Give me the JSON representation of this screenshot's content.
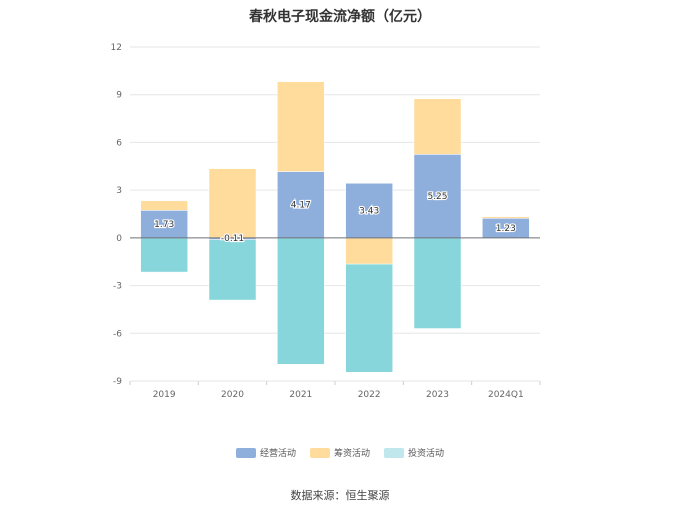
{
  "chart_data": {
    "type": "bar",
    "stacked": true,
    "title": "春秋电子现金流净额（亿元）",
    "categories": [
      "2019",
      "2020",
      "2021",
      "2022",
      "2023",
      "2024Q1"
    ],
    "series": [
      {
        "name": "经营活动",
        "color": "#8EAEDC",
        "values": [
          1.73,
          -0.11,
          4.17,
          3.43,
          5.25,
          1.23
        ]
      },
      {
        "name": "筹资活动",
        "color": "#FFDB9C",
        "values": [
          0.6,
          4.35,
          5.65,
          -1.65,
          3.5,
          0.1
        ]
      },
      {
        "name": "投资活动",
        "color": "#87D6DB",
        "values": [
          -2.15,
          -3.8,
          -7.95,
          -6.8,
          -5.7,
          0.0
        ]
      }
    ],
    "data_labels": [
      "1.73",
      "-0.11",
      "4.17",
      "3.43",
      "5.25",
      "1.23"
    ],
    "ylim": [
      -9,
      12
    ],
    "yticks": [
      12,
      9,
      6,
      3,
      0,
      -3,
      -6,
      -9
    ],
    "xlabel": "",
    "ylabel": "",
    "legend_position": "bottom",
    "legend_colors": [
      "#8EAEDC",
      "#FFDB9C",
      "#BFE7EC"
    ]
  },
  "source": "数据来源：恒生聚源"
}
